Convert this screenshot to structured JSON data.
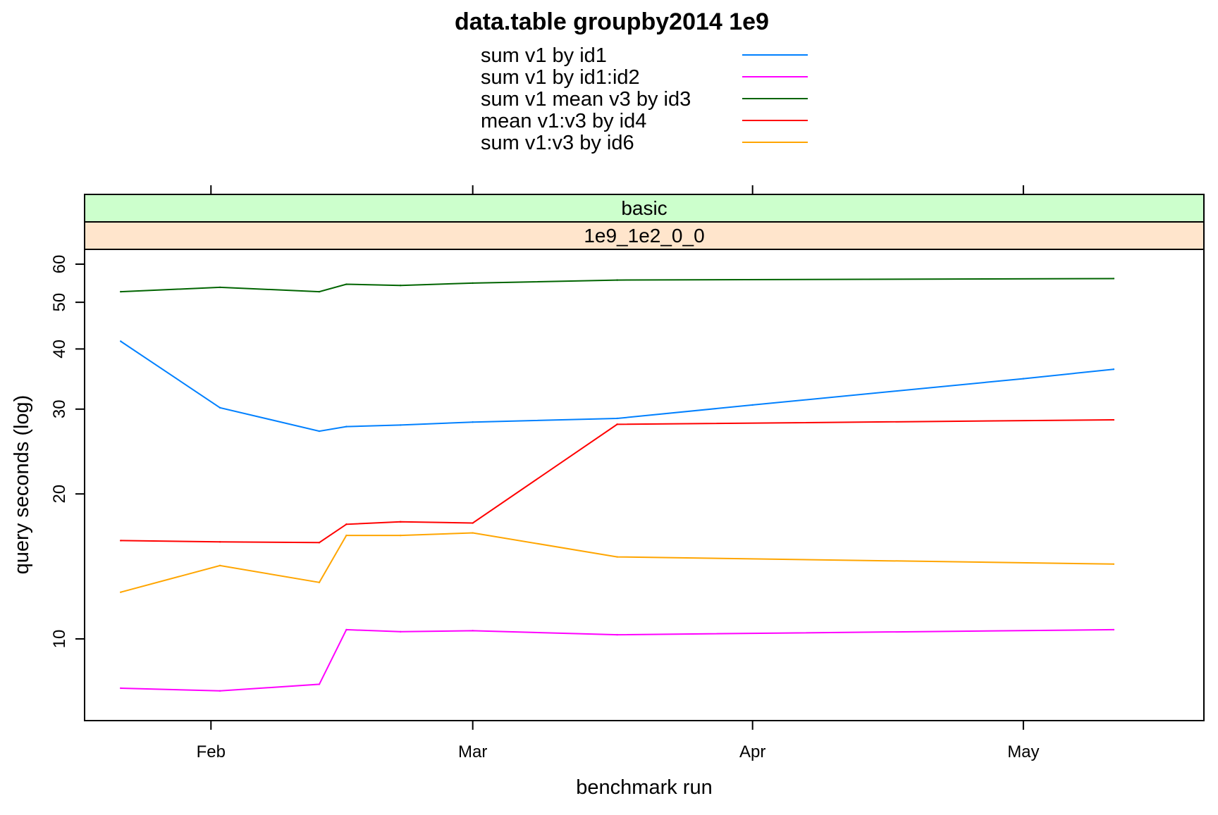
{
  "chart_data": {
    "type": "line",
    "title": "data.table groupby2014 1e9",
    "xlabel": "benchmark run",
    "ylabel": "query seconds (log)",
    "strip_top": "basic",
    "strip_bottom": "1e9_1e2_0_0",
    "y_scale": "log",
    "ylim": [
      8.3,
      66
    ],
    "xlim": [
      "2024-01-18",
      "2024-05-21"
    ],
    "y_ticks": [
      10,
      20,
      30,
      40,
      50,
      60
    ],
    "y_tick_labels": [
      "10",
      "20",
      "30",
      "40",
      "50",
      "60"
    ],
    "x_ticks": [
      "2024-02-01",
      "2024-03-01",
      "2024-04-01",
      "2024-05-01"
    ],
    "x_tick_labels": [
      "Feb",
      "Mar",
      "Apr",
      "May"
    ],
    "grid": false,
    "legend_position": "top",
    "colors": {
      "strip_top": "#ccffcc",
      "strip_bottom": "#ffe5cc"
    },
    "x": [
      "2024-01-22",
      "2024-02-02",
      "2024-02-13",
      "2024-02-16",
      "2024-02-22",
      "2024-03-01",
      "2024-03-17",
      "2024-05-11"
    ],
    "series": [
      {
        "name": "sum v1 by id1",
        "color": "#0080ff",
        "values": [
          41.5,
          30.2,
          27.0,
          27.6,
          27.8,
          28.2,
          28.7,
          36.3
        ],
        "extra_points": [
          {
            "x": "2024-04-01",
            "y": 30.6
          },
          {
            "x": "2024-05-01",
            "y": 34.7
          }
        ]
      },
      {
        "name": "sum v1 by id1:id2",
        "color": "#ff00ff",
        "values": [
          7.9,
          7.8,
          8.05,
          10.45,
          10.35,
          10.4,
          10.2,
          10.45
        ]
      },
      {
        "name": "sum v1 mean v3 by id3",
        "color": "#006400",
        "values": [
          52.6,
          53.7,
          52.6,
          54.5,
          54.2,
          54.8,
          55.6,
          56.0
        ]
      },
      {
        "name": "mean v1:v3 by id4",
        "color": "#ff0000",
        "values": [
          16.0,
          15.9,
          15.85,
          17.3,
          17.5,
          17.4,
          27.9,
          28.5
        ]
      },
      {
        "name": "sum v1:v3 by id6",
        "color": "#ffa500",
        "values": [
          12.5,
          14.2,
          13.1,
          16.4,
          16.4,
          16.6,
          14.8,
          14.3
        ]
      }
    ]
  }
}
